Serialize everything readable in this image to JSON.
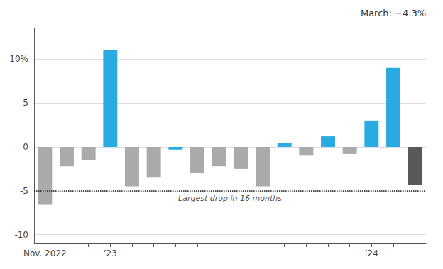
{
  "chart_data": {
    "type": "bar",
    "categories": [
      "Nov. 2022",
      null,
      null,
      "’23",
      null,
      null,
      null,
      null,
      null,
      null,
      null,
      null,
      null,
      null,
      null,
      "’24",
      null,
      null
    ],
    "values": [
      -6.6,
      -2.2,
      -1.5,
      11.0,
      -4.5,
      -3.5,
      -0.3,
      -3.0,
      -2.2,
      -2.5,
      -4.5,
      0.4,
      -1.0,
      1.2,
      -0.8,
      3.0,
      9.0,
      -4.3
    ],
    "colors": [
      "#aaaaaa",
      "#aaaaaa",
      "#aaaaaa",
      "#29abe2",
      "#aaaaaa",
      "#aaaaaa",
      "#29abe2",
      "#aaaaaa",
      "#aaaaaa",
      "#aaaaaa",
      "#aaaaaa",
      "#29abe2",
      "#aaaaaa",
      "#29abe2",
      "#aaaaaa",
      "#29abe2",
      "#29abe2",
      "#595959"
    ],
    "ylim": [
      -11.0,
      13.5
    ],
    "yticks": [
      -10,
      -5,
      0,
      5,
      {
        "value": 10,
        "label": "10%"
      }
    ],
    "grid": true,
    "annotations": [
      {
        "text": "Largest drop in 16 months",
        "y": -5,
        "line_style": "dotted"
      },
      {
        "text": "March: −4.3%"
      }
    ]
  }
}
